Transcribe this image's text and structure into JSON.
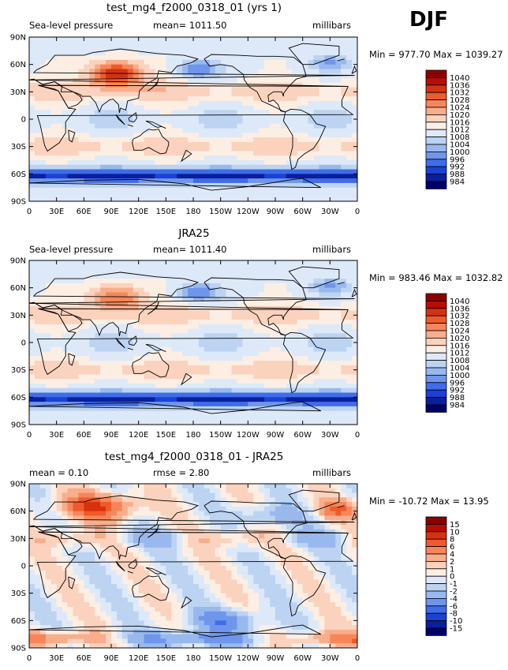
{
  "season": "DJF",
  "chart_data": [
    {
      "type": "heatmap",
      "title": "test_mg4_f2000_0318_01 (yrs 1)",
      "left_label": "Sea-level pressure",
      "center_label": "mean= 1011.50",
      "right_label": "millibars",
      "stats": "Min = 977.70 Max = 1039.27",
      "xticks": [
        "0",
        "30E",
        "60E",
        "90E",
        "120E",
        "150E",
        "180",
        "150W",
        "120W",
        "90W",
        "60W",
        "30W",
        "0"
      ],
      "yticks": [
        "90N",
        "60N",
        "30N",
        "0",
        "30S",
        "60S",
        "90S"
      ],
      "xlim": [
        0,
        360
      ],
      "ylim": [
        -90,
        90
      ],
      "levels": [
        "1040",
        "1036",
        "1032",
        "1028",
        "1024",
        "1020",
        "1016",
        "1012",
        "1008",
        "1004",
        "1000",
        "996",
        "992",
        "988",
        "984"
      ],
      "colors": [
        "#8b0000",
        "#b80c04",
        "#d8310f",
        "#ee5a2c",
        "#f6865a",
        "#f8ad8b",
        "#fbd2bd",
        "#fdeee4",
        "#dde9f8",
        "#bcd3f2",
        "#98b8ee",
        "#6f96eb",
        "#3f6ce8",
        "#1a42d4",
        "#0a1f9c",
        "#00006b"
      ],
      "mean": 1011.5,
      "min": 977.7,
      "max": 1039.27
    },
    {
      "type": "heatmap",
      "title": "JRA25",
      "left_label": "Sea-level pressure",
      "center_label": "mean= 1011.40",
      "right_label": "millibars",
      "stats": "Min = 983.46 Max = 1032.82",
      "xticks": [
        "0",
        "30E",
        "60E",
        "90E",
        "120E",
        "150E",
        "180",
        "150W",
        "120W",
        "90W",
        "60W",
        "30W",
        "0"
      ],
      "yticks": [
        "90N",
        "60N",
        "30N",
        "0",
        "30S",
        "60S",
        "90S"
      ],
      "xlim": [
        0,
        360
      ],
      "ylim": [
        -90,
        90
      ],
      "levels": [
        "1040",
        "1036",
        "1032",
        "1028",
        "1024",
        "1020",
        "1016",
        "1012",
        "1008",
        "1004",
        "1000",
        "996",
        "992",
        "988",
        "984"
      ],
      "colors": [
        "#8b0000",
        "#b80c04",
        "#d8310f",
        "#ee5a2c",
        "#f6865a",
        "#f8ad8b",
        "#fbd2bd",
        "#fdeee4",
        "#dde9f8",
        "#bcd3f2",
        "#98b8ee",
        "#6f96eb",
        "#3f6ce8",
        "#1a42d4",
        "#0a1f9c",
        "#00006b"
      ],
      "mean": 1011.4,
      "min": 983.46,
      "max": 1032.82
    },
    {
      "type": "heatmap",
      "title": "test_mg4_f2000_0318_01 - JRA25",
      "left_label": "mean =    0.10",
      "center_label": "rmse =    2.80",
      "right_label": "millibars",
      "stats": "Min = -10.72 Max =  13.95",
      "xticks": [
        "0",
        "30E",
        "60E",
        "90E",
        "120E",
        "150E",
        "180",
        "150W",
        "120W",
        "90W",
        "60W",
        "30W",
        "0"
      ],
      "yticks": [
        "90N",
        "60N",
        "30N",
        "0",
        "30S",
        "60S",
        "90S"
      ],
      "xlim": [
        0,
        360
      ],
      "ylim": [
        -90,
        90
      ],
      "levels": [
        "15",
        "10",
        "8",
        "6",
        "4",
        "2",
        "1",
        "0",
        "-1",
        "-2",
        "-4",
        "-6",
        "-8",
        "-10",
        "-15"
      ],
      "colors": [
        "#8b0000",
        "#b80c04",
        "#d8310f",
        "#ee5a2c",
        "#f6865a",
        "#f8ad8b",
        "#fbd2bd",
        "#fdeee4",
        "#dde9f8",
        "#bcd3f2",
        "#98b8ee",
        "#6f96eb",
        "#3f6ce8",
        "#1a42d4",
        "#0a1f9c",
        "#00006b"
      ],
      "mean": 0.1,
      "rmse": 2.8,
      "min": -10.72,
      "max": 13.95
    }
  ]
}
